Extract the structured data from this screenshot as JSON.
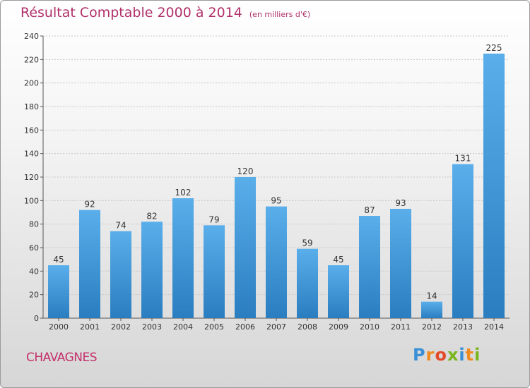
{
  "header": {
    "title": "Résultat Comptable 2000 à 2014",
    "subtitle": "(en milliers d'€)"
  },
  "footer": {
    "commune": "CHAVAGNES",
    "brand": "Proxiti",
    "brand_letters": [
      "P",
      "r",
      "o",
      "x",
      "i",
      "t",
      "i"
    ],
    "brand_colors": [
      "#3a8fd6",
      "#f08a1c",
      "#e24a2a",
      "#7ab51d",
      "#3a8fd6",
      "#f08a1c",
      "#7ab51d"
    ]
  },
  "colors": {
    "title": "#b0306a",
    "bar_top": "#5aaeea",
    "bar_bottom": "#2a7ec0",
    "grid": "#c8c8c8",
    "axis": "#555555",
    "text": "#333333"
  },
  "chart_data": {
    "type": "bar",
    "title": "Résultat Comptable 2000 à 2014",
    "subtitle": "(en milliers d'€)",
    "xlabel": "",
    "ylabel": "",
    "categories": [
      "2000",
      "2001",
      "2002",
      "2003",
      "2004",
      "2005",
      "2006",
      "2007",
      "2008",
      "2009",
      "2010",
      "2011",
      "2012",
      "2013",
      "2014"
    ],
    "values": [
      45,
      92,
      74,
      82,
      102,
      79,
      120,
      95,
      59,
      45,
      87,
      93,
      14,
      131,
      225
    ],
    "ylim": [
      0,
      240
    ],
    "yticks": [
      0,
      20,
      40,
      60,
      80,
      100,
      120,
      140,
      160,
      180,
      200,
      220,
      240
    ],
    "grid": true,
    "data_labels": true
  }
}
